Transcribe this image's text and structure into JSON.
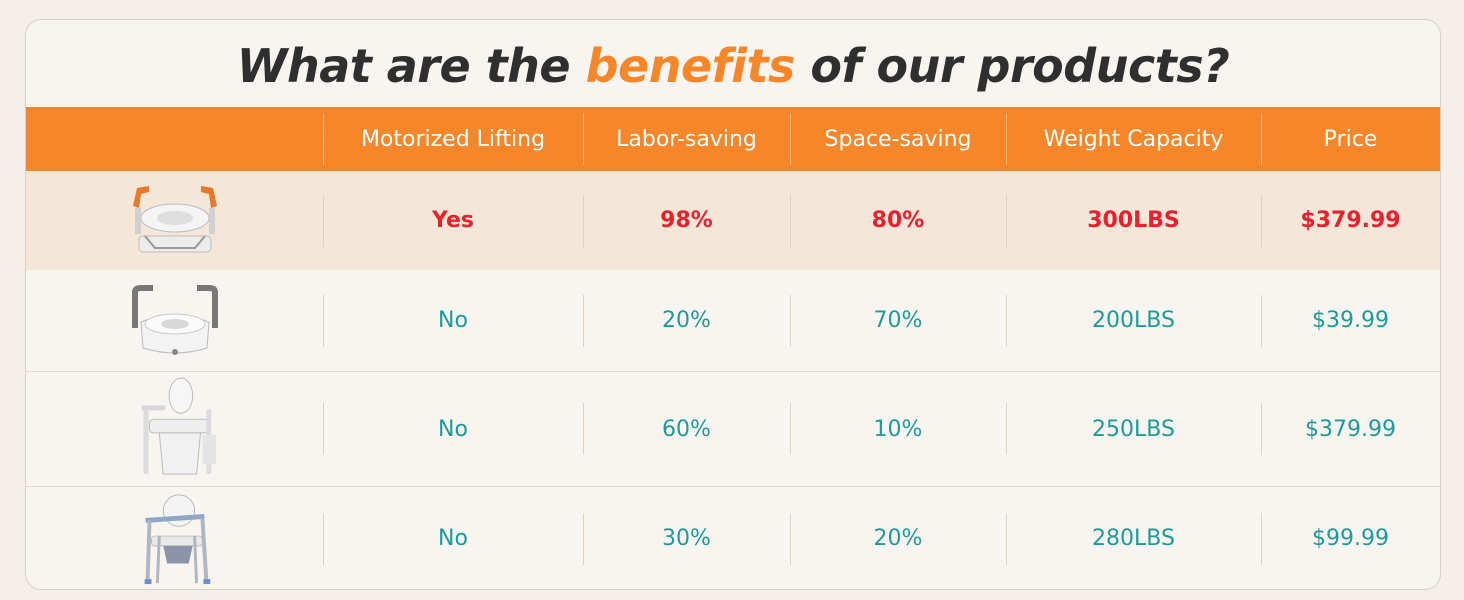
{
  "title": {
    "before": "What are the ",
    "highlight": "benefits",
    "after": " of our products?"
  },
  "colors": {
    "accent": "#f5862a",
    "highlight_value": "#e8202f",
    "value": "#1f9a9a"
  },
  "columns": [
    "Motorized Lifting",
    "Labor-saving",
    "Space-saving",
    "Weight Capacity",
    "Price"
  ],
  "rows": [
    {
      "image": "motorized-toilet-seat-riser-orange-handles",
      "values": [
        "Yes",
        "98%",
        "80%",
        "300LBS",
        "$379.99"
      ]
    },
    {
      "image": "raised-toilet-seat-with-arms",
      "values": [
        "No",
        "20%",
        "70%",
        "200LBS",
        "$39.99"
      ]
    },
    {
      "image": "toilet-with-lift-frame",
      "values": [
        "No",
        "60%",
        "10%",
        "250LBS",
        "$379.99"
      ]
    },
    {
      "image": "bedside-commode-chair",
      "values": [
        "No",
        "30%",
        "20%",
        "280LBS",
        "$99.99"
      ]
    }
  ]
}
